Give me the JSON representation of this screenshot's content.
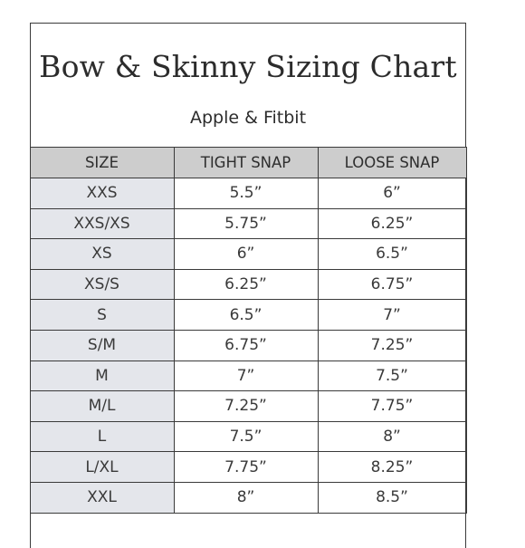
{
  "title": "Bow & Skinny Sizing Chart",
  "subtitle": "Apple & Fitbit",
  "colors": {
    "header_bg": "#cdcdcd",
    "size_column_bg": "#e4e6eb",
    "border": "#3a3a3a",
    "text": "#2c2c2c"
  },
  "table": {
    "headers": [
      "SIZE",
      "TIGHT SNAP",
      "LOOSE SNAP"
    ],
    "rows": [
      {
        "size": "XXS",
        "tight": "5.5”",
        "loose": "6”"
      },
      {
        "size": "XXS/XS",
        "tight": "5.75”",
        "loose": "6.25”"
      },
      {
        "size": "XS",
        "tight": "6”",
        "loose": "6.5”"
      },
      {
        "size": "XS/S",
        "tight": "6.25”",
        "loose": "6.75”"
      },
      {
        "size": "S",
        "tight": "6.5”",
        "loose": "7”"
      },
      {
        "size": "S/M",
        "tight": "6.75”",
        "loose": "7.25”"
      },
      {
        "size": "M",
        "tight": "7”",
        "loose": "7.5”"
      },
      {
        "size": "M/L",
        "tight": "7.25”",
        "loose": "7.75”"
      },
      {
        "size": "L",
        "tight": "7.5”",
        "loose": "8”"
      },
      {
        "size": "L/XL",
        "tight": "7.75”",
        "loose": "8.25”"
      },
      {
        "size": "XXL",
        "tight": "8”",
        "loose": "8.5”"
      }
    ]
  }
}
